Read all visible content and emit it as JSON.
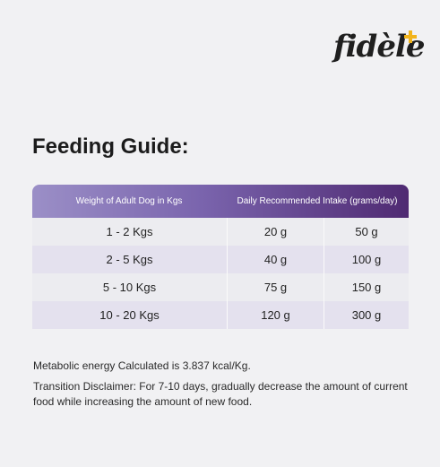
{
  "brand": {
    "logo_text": "fidèle"
  },
  "title": "Feeding Guide:",
  "table": {
    "header": {
      "col1": "Weight of Adult Dog in Kgs",
      "col2": "Daily Recommended Intake (grams/day)"
    },
    "rows": [
      {
        "weight": "1 - 2 Kgs",
        "min": "20 g",
        "max": "50 g"
      },
      {
        "weight": "2 - 5 Kgs",
        "min": "40 g",
        "max": "100 g"
      },
      {
        "weight": "5 - 10 Kgs",
        "min": "75 g",
        "max": "150 g"
      },
      {
        "weight": "10 - 20 Kgs",
        "min": "120 g",
        "max": "300 g"
      }
    ]
  },
  "notes": {
    "energy": "Metabolic energy Calculated is 3.837 kcal/Kg.",
    "transition": "Transition Disclaimer: For 7-10 days, gradually decrease the amount of current food while increasing the amount of new food."
  },
  "colors": {
    "header_gradient_start": "#9b8fc7",
    "header_gradient_end": "#4f2a72",
    "logo_accent": "#f2b41b",
    "row_alt": "#e4e1ee",
    "row_plain": "#ececf0",
    "background": "#f1f1f3"
  }
}
